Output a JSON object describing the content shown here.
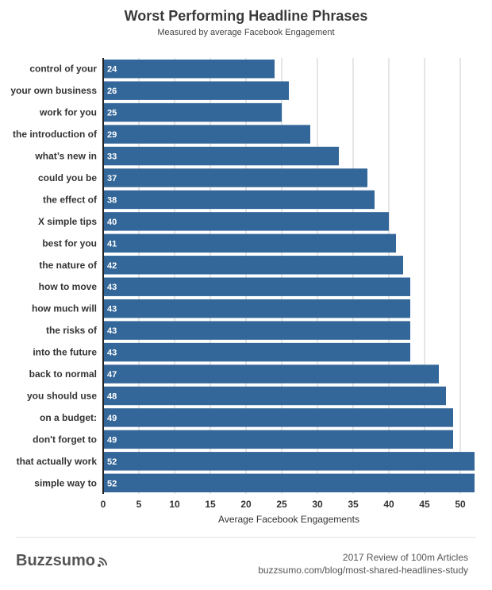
{
  "chart_data": {
    "type": "bar",
    "orientation": "horizontal",
    "title": "Worst Performing Headline Phrases",
    "subtitle": "Measured by average Facebook Engagement",
    "xlabel": "Average Facebook Engagements",
    "xlim": [
      0,
      52
    ],
    "xticks": [
      0,
      5,
      10,
      15,
      20,
      25,
      30,
      35,
      40,
      45,
      50
    ],
    "grid": "vertical",
    "categories": [
      "control of your",
      "your own business",
      "work for you",
      "the introduction of",
      "what’s new in",
      "could you be",
      "the effect of",
      "X simple tips",
      "best for you",
      "the nature of",
      "how to move",
      "how much will",
      "the risks of",
      "into the future",
      "back to normal",
      "you should use",
      "on a budget:",
      "don't forget to",
      "that actually work",
      "simple way to"
    ],
    "values": [
      24,
      26,
      25,
      29,
      33,
      37,
      38,
      40,
      41,
      42,
      43,
      43,
      43,
      43,
      47,
      48,
      49,
      49,
      52,
      52
    ],
    "colors": {
      "bar": "#336699",
      "bar_label": "#ffffff",
      "grid": "#cccccc",
      "axis": "#222222"
    }
  },
  "footer": {
    "brand": "Buzzsumo",
    "line1": "2017 Review of 100m Articles",
    "line2": "buzzsumo.com/blog/most-shared-headlines-study"
  }
}
